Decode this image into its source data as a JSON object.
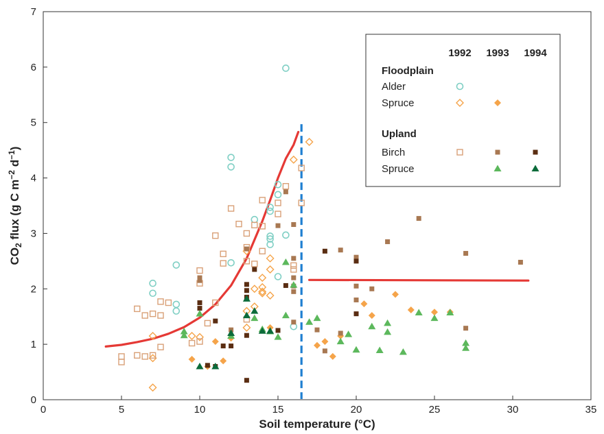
{
  "chart_data": {
    "type": "scatter",
    "xlabel": "Soil temperature (°C)",
    "ylabel_parts": [
      "CO",
      "2",
      " flux (g C m",
      "−2",
      " d",
      "−1",
      ")"
    ],
    "xlim": [
      0,
      35
    ],
    "ylim": [
      0,
      7
    ],
    "x_ticks": [
      0,
      5,
      10,
      15,
      20,
      25,
      30,
      35
    ],
    "y_ticks": [
      0,
      1,
      2,
      3,
      4,
      5,
      6,
      7
    ],
    "grid": false,
    "legend": {
      "placement": "top-right",
      "years": [
        "1992",
        "1993",
        "1994"
      ],
      "groups": [
        {
          "heading": "Floodplain",
          "rows": [
            {
              "label": "Alder",
              "symbols": [
                "alder_1992",
                null,
                null
              ]
            },
            {
              "label": "Spruce",
              "symbols": [
                "fp_spruce_1992",
                "fp_spruce_1993",
                null
              ]
            }
          ]
        },
        {
          "heading": "Upland",
          "rows": [
            {
              "label": "Birch",
              "symbols": [
                "birch_1992",
                "birch_1993",
                "birch_1994"
              ]
            },
            {
              "label": "Spruce",
              "symbols": [
                null,
                "up_spruce_1993",
                "up_spruce_1994"
              ]
            }
          ]
        }
      ]
    },
    "series": [
      {
        "id": "alder_1992",
        "marker": "circle-open",
        "color": "#7fcfc4",
        "points": [
          [
            7,
            2.1
          ],
          [
            7,
            1.92
          ],
          [
            8.5,
            2.43
          ],
          [
            8.5,
            1.72
          ],
          [
            8.5,
            1.6
          ],
          [
            12,
            4.37
          ],
          [
            12,
            4.2
          ],
          [
            12,
            2.47
          ],
          [
            13.5,
            3.25
          ],
          [
            14.5,
            3.47
          ],
          [
            14.5,
            3.4
          ],
          [
            14.5,
            2.95
          ],
          [
            14.5,
            2.9
          ],
          [
            14.5,
            2.8
          ],
          [
            15,
            3.88
          ],
          [
            15,
            3.7
          ],
          [
            15,
            2.22
          ],
          [
            15.5,
            5.98
          ],
          [
            15.5,
            2.97
          ],
          [
            16,
            1.32
          ]
        ]
      },
      {
        "id": "fp_spruce_1992",
        "marker": "diamond-open",
        "color": "#f5a44a",
        "points": [
          [
            7,
            1.15
          ],
          [
            7,
            0.75
          ],
          [
            7,
            0.22
          ],
          [
            9.5,
            1.15
          ],
          [
            10,
            1.13
          ],
          [
            13,
            2.68
          ],
          [
            13,
            1.6
          ],
          [
            13,
            1.3
          ],
          [
            13.5,
            2.0
          ],
          [
            13.5,
            1.68
          ],
          [
            14,
            2.2
          ],
          [
            14,
            2.03
          ],
          [
            14,
            1.95
          ],
          [
            14,
            1.92
          ],
          [
            14.5,
            2.55
          ],
          [
            14.5,
            2.35
          ],
          [
            14.5,
            1.88
          ],
          [
            16,
            4.33
          ],
          [
            17,
            4.65
          ]
        ]
      },
      {
        "id": "fp_spruce_1993",
        "marker": "diamond",
        "color": "#f5a44a",
        "points": [
          [
            9.5,
            0.73
          ],
          [
            11,
            1.05
          ],
          [
            11.5,
            0.7
          ],
          [
            10.5,
            0.6
          ],
          [
            12,
            1.11
          ],
          [
            14.5,
            1.3
          ],
          [
            17.5,
            0.98
          ],
          [
            18,
            1.05
          ],
          [
            18.5,
            0.78
          ],
          [
            19,
            1.15
          ],
          [
            20.5,
            1.73
          ],
          [
            21,
            1.52
          ],
          [
            22.5,
            1.9
          ],
          [
            23.5,
            1.62
          ],
          [
            25,
            1.58
          ],
          [
            26,
            1.58
          ]
        ]
      },
      {
        "id": "birch_1992",
        "marker": "square-open",
        "color": "#d9a077",
        "points": [
          [
            5,
            0.78
          ],
          [
            5,
            0.68
          ],
          [
            6,
            1.64
          ],
          [
            6,
            0.8
          ],
          [
            6.5,
            1.52
          ],
          [
            6.5,
            0.78
          ],
          [
            7,
            1.55
          ],
          [
            7,
            0.8
          ],
          [
            7.5,
            1.77
          ],
          [
            7.5,
            1.52
          ],
          [
            7.5,
            0.95
          ],
          [
            8,
            1.75
          ],
          [
            9.5,
            1.02
          ],
          [
            10,
            2.33
          ],
          [
            10,
            2.1
          ],
          [
            10,
            1.05
          ],
          [
            10.5,
            1.38
          ],
          [
            11,
            2.96
          ],
          [
            11,
            1.75
          ],
          [
            11.5,
            2.46
          ],
          [
            11.5,
            2.63
          ],
          [
            12,
            3.45
          ],
          [
            12.5,
            3.17
          ],
          [
            13,
            3.0
          ],
          [
            13,
            2.75
          ],
          [
            13,
            2.5
          ],
          [
            13,
            1.45
          ],
          [
            13.5,
            3.15
          ],
          [
            13.5,
            2.45
          ],
          [
            14,
            3.6
          ],
          [
            14,
            3.13
          ],
          [
            14,
            2.68
          ],
          [
            15,
            3.55
          ],
          [
            15,
            3.35
          ],
          [
            15.5,
            3.85
          ],
          [
            16,
            2.42
          ],
          [
            16,
            2.35
          ],
          [
            16.5,
            4.18
          ],
          [
            16.5,
            3.55
          ]
        ]
      },
      {
        "id": "birch_1993",
        "marker": "square",
        "color": "#a87852",
        "points": [
          [
            10,
            2.2
          ],
          [
            10,
            2.15
          ],
          [
            12,
            1.26
          ],
          [
            13,
            2.72
          ],
          [
            15,
            3.14
          ],
          [
            15.5,
            3.75
          ],
          [
            16,
            3.16
          ],
          [
            16,
            2.55
          ],
          [
            16,
            2.2
          ],
          [
            16,
            2.05
          ],
          [
            16,
            1.95
          ],
          [
            16,
            1.4
          ],
          [
            17.5,
            1.26
          ],
          [
            18,
            0.88
          ],
          [
            19,
            2.7
          ],
          [
            19,
            1.2
          ],
          [
            20,
            2.57
          ],
          [
            20,
            2.05
          ],
          [
            20,
            1.8
          ],
          [
            21,
            2.0
          ],
          [
            22,
            2.85
          ],
          [
            24,
            3.27
          ],
          [
            27,
            2.64
          ],
          [
            27,
            1.29
          ],
          [
            30.5,
            2.48
          ]
        ]
      },
      {
        "id": "birch_1994",
        "marker": "square",
        "color": "#5a2d12",
        "points": [
          [
            10,
            1.75
          ],
          [
            10,
            1.65
          ],
          [
            10.5,
            0.62
          ],
          [
            11,
            1.42
          ],
          [
            11,
            0.6
          ],
          [
            11.5,
            0.97
          ],
          [
            12,
            0.97
          ],
          [
            13,
            2.08
          ],
          [
            13,
            1.97
          ],
          [
            13,
            1.85
          ],
          [
            13,
            1.16
          ],
          [
            13,
            0.35
          ],
          [
            13.5,
            2.35
          ],
          [
            15,
            1.25
          ],
          [
            15.5,
            2.06
          ],
          [
            18,
            2.68
          ],
          [
            20,
            2.5
          ],
          [
            20,
            1.55
          ]
        ]
      },
      {
        "id": "up_spruce_1993",
        "marker": "triangle",
        "color": "#5cb85c",
        "points": [
          [
            9,
            1.23
          ],
          [
            9,
            1.16
          ],
          [
            10,
            1.55
          ],
          [
            12,
            1.15
          ],
          [
            13.5,
            1.47
          ],
          [
            14,
            1.27
          ],
          [
            14.5,
            1.23
          ],
          [
            15,
            1.13
          ],
          [
            15.5,
            2.48
          ],
          [
            15.5,
            1.52
          ],
          [
            16,
            2.07
          ],
          [
            17,
            1.4
          ],
          [
            17.5,
            1.47
          ],
          [
            19,
            1.05
          ],
          [
            19.5,
            1.18
          ],
          [
            20,
            0.9
          ],
          [
            21,
            1.32
          ],
          [
            21.5,
            0.89
          ],
          [
            22,
            1.38
          ],
          [
            22,
            1.22
          ],
          [
            23,
            0.86
          ],
          [
            24,
            1.57
          ],
          [
            25,
            1.47
          ],
          [
            26,
            1.57
          ],
          [
            27,
            1.02
          ],
          [
            27,
            0.93
          ]
        ]
      },
      {
        "id": "up_spruce_1994",
        "marker": "triangle",
        "color": "#0b6b3a",
        "points": [
          [
            10,
            0.6
          ],
          [
            11,
            0.6
          ],
          [
            12,
            1.2
          ],
          [
            13,
            1.82
          ],
          [
            13,
            1.52
          ],
          [
            13.5,
            1.6
          ],
          [
            14,
            1.24
          ],
          [
            14.5,
            1.24
          ]
        ]
      }
    ],
    "fit_lines": [
      {
        "color": "#e53935",
        "points": [
          [
            4,
            0.96
          ],
          [
            5,
            0.99
          ],
          [
            6,
            1.04
          ],
          [
            7,
            1.1
          ],
          [
            8,
            1.19
          ],
          [
            9,
            1.31
          ],
          [
            10,
            1.48
          ],
          [
            11,
            1.72
          ],
          [
            12,
            2.06
          ],
          [
            13,
            2.55
          ],
          [
            14,
            3.22
          ],
          [
            14.5,
            3.6
          ],
          [
            15,
            4.0
          ],
          [
            15.5,
            4.35
          ],
          [
            16,
            4.6
          ],
          [
            16.3,
            4.83
          ]
        ]
      },
      {
        "color": "#e53935",
        "points": [
          [
            17,
            2.16
          ],
          [
            31,
            2.15
          ]
        ]
      }
    ],
    "threshold_line": {
      "x": 16.5,
      "color": "#1f7fd1"
    }
  }
}
